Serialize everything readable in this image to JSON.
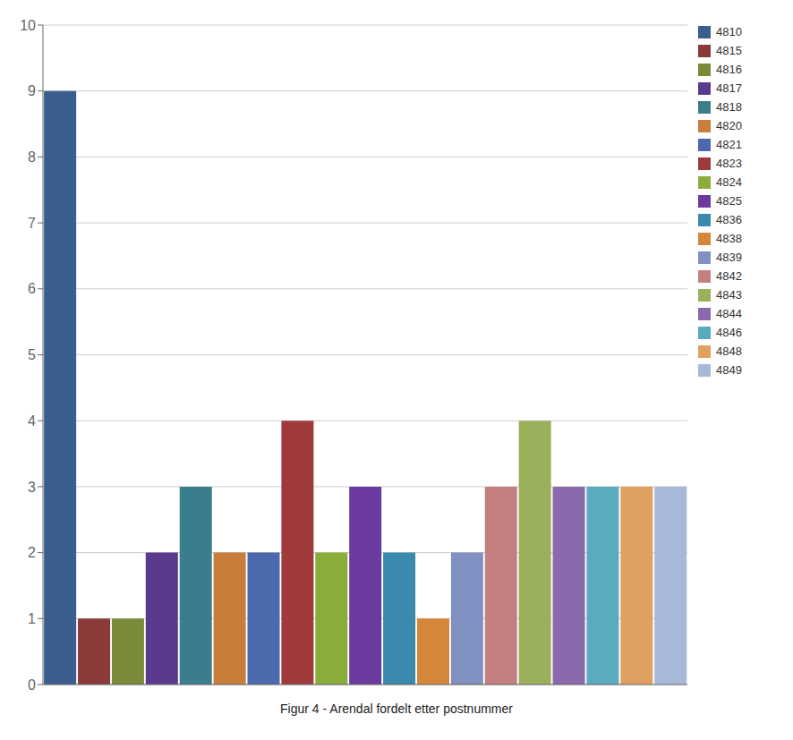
{
  "chart_data": {
    "type": "bar",
    "title": "Figur 4 - Arendal fordelt etter postnummer",
    "categories": [
      "4810",
      "4815",
      "4816",
      "4817",
      "4818",
      "4820",
      "4821",
      "4823",
      "4824",
      "4825",
      "4836",
      "4838",
      "4839",
      "4842",
      "4843",
      "4844",
      "4846",
      "4848",
      "4849"
    ],
    "values": [
      9,
      1,
      1,
      2,
      3,
      2,
      2,
      4,
      2,
      3,
      2,
      1,
      2,
      3,
      4,
      3,
      3,
      3,
      3
    ],
    "colors": [
      "#3a5f8f",
      "#8b3a3a",
      "#7a8c3a",
      "#5a3a8c",
      "#3a7d8c",
      "#c87d3a",
      "#4a6aad",
      "#9e3a3a",
      "#8aad3a",
      "#6a3a9e",
      "#3a8aad",
      "#d4873a",
      "#8090c0",
      "#c48080",
      "#9ab05a",
      "#8a6aad",
      "#5aaac0",
      "#e0a060",
      "#a8b8d8"
    ],
    "ylim": [
      0,
      10
    ],
    "yticks": [
      0,
      1,
      2,
      3,
      4,
      5,
      6,
      7,
      8,
      9,
      10
    ],
    "grid": true,
    "legend": "right",
    "tick_labels": "y"
  }
}
